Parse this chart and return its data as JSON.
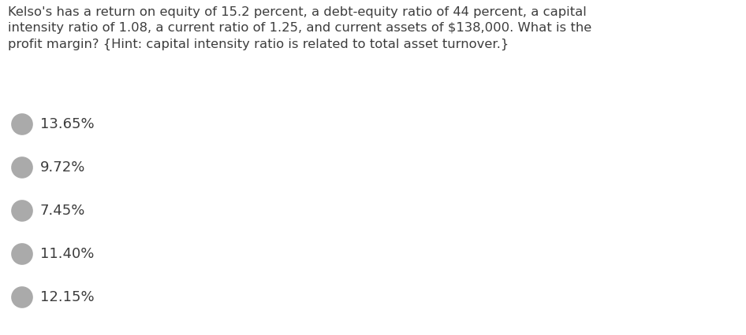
{
  "question_text": "Kelso's has a return on equity of 15.2 percent, a debt-equity ratio of 44 percent, a capital\nintensity ratio of 1.08, a current ratio of 1.25, and current assets of $138,000. What is the\nprofit margin? {Hint: capital intensity ratio is related to total asset turnover.}",
  "options": [
    "13.65%",
    "9.72%",
    "7.45%",
    "11.40%",
    "12.15%"
  ],
  "text_color": "#3d3d3d",
  "option_text_color": "#3d3d3d",
  "background_color": "#ffffff",
  "question_fontsize": 11.8,
  "option_fontsize": 13.0,
  "circle_edge_color": "#aaaaaa",
  "circle_face_color": "#f0f0f8",
  "fig_width": 9.46,
  "fig_height": 4.26,
  "dpi": 100
}
